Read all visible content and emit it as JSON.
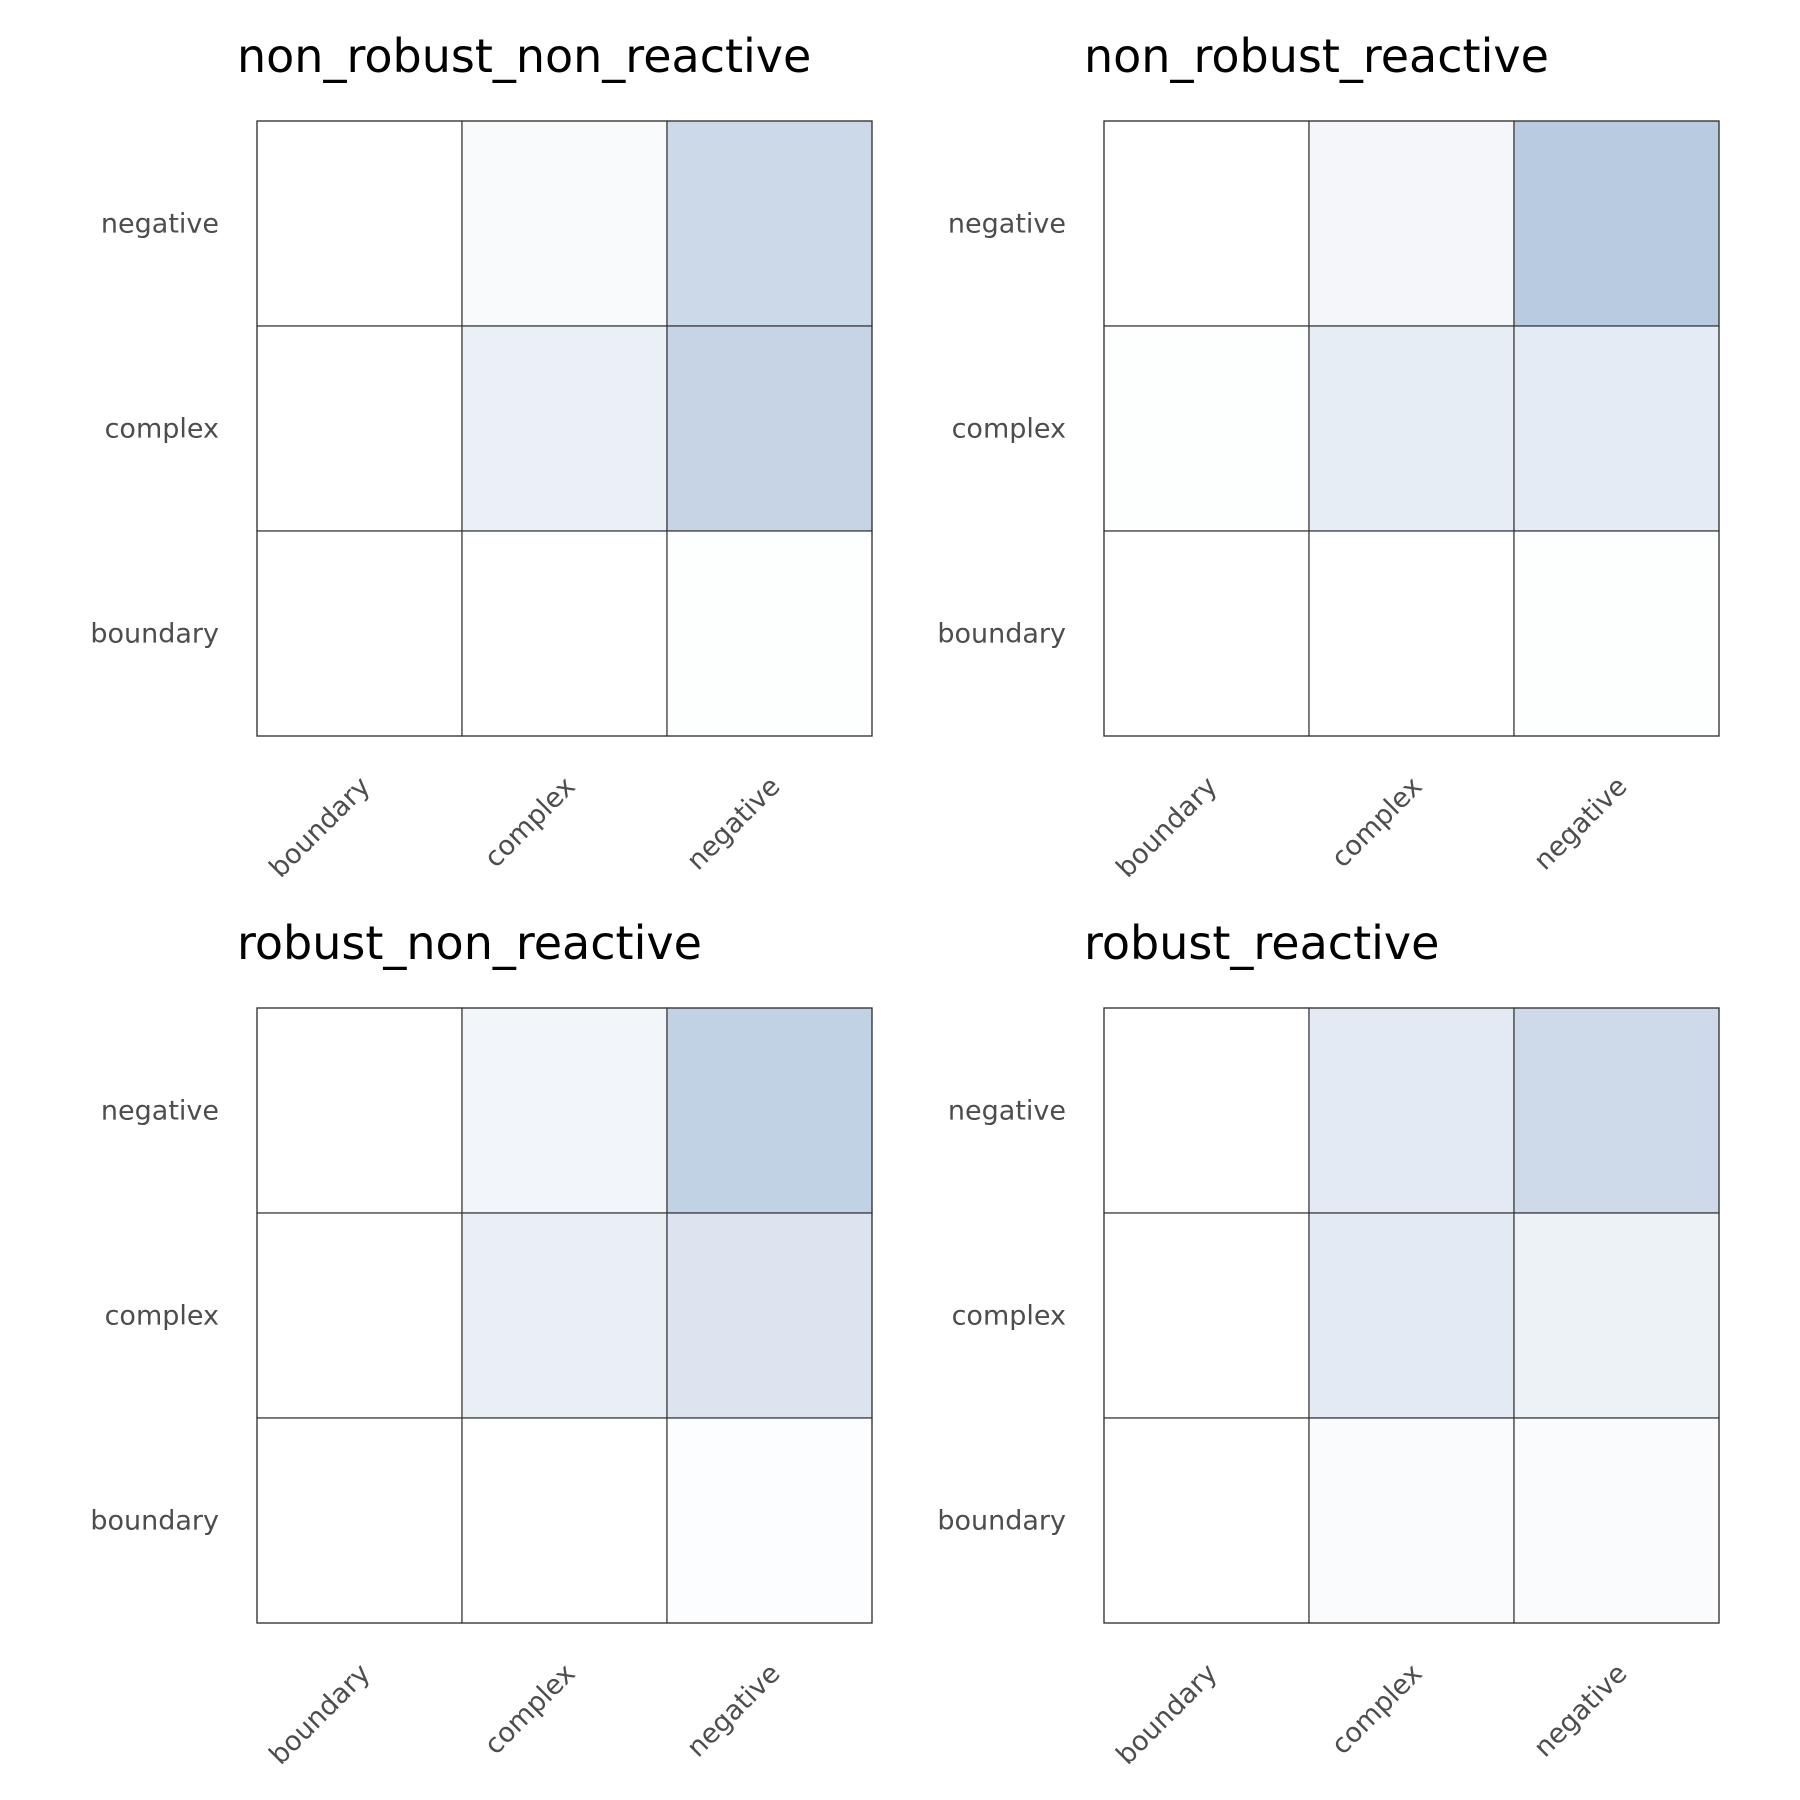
{
  "chart_data": [
    {
      "type": "heatmap",
      "title": "non_robust_non_reactive",
      "x_categories": [
        "boundary",
        "complex",
        "negative"
      ],
      "y_categories": [
        "negative",
        "complex",
        "boundary"
      ],
      "values": [
        [
          0.0,
          0.04,
          0.31
        ],
        [
          0.0,
          0.12,
          0.35
        ],
        [
          0.0,
          0.0,
          0.01
        ]
      ],
      "color_range": [
        "#ffffff",
        "#5b85b8"
      ],
      "value_range": [
        0,
        1
      ]
    },
    {
      "type": "heatmap",
      "title": "non_robust_reactive",
      "x_categories": [
        "boundary",
        "complex",
        "negative"
      ],
      "y_categories": [
        "negative",
        "complex",
        "boundary"
      ],
      "values": [
        [
          0.0,
          0.07,
          0.43
        ],
        [
          0.01,
          0.15,
          0.16
        ],
        [
          0.0,
          0.0,
          0.01
        ]
      ],
      "color_range": [
        "#ffffff",
        "#5b85b8"
      ],
      "value_range": [
        0,
        1
      ]
    },
    {
      "type": "heatmap",
      "title": "robust_non_reactive",
      "x_categories": [
        "boundary",
        "complex",
        "negative"
      ],
      "y_categories": [
        "negative",
        "complex",
        "boundary"
      ],
      "values": [
        [
          0.0,
          0.08,
          0.37
        ],
        [
          0.0,
          0.13,
          0.22
        ],
        [
          0.0,
          0.0,
          0.02
        ]
      ],
      "color_range": [
        "#ffffff",
        "#5b85b8"
      ],
      "value_range": [
        0,
        1
      ]
    },
    {
      "type": "heatmap",
      "title": "robust_reactive",
      "x_categories": [
        "boundary",
        "complex",
        "negative"
      ],
      "y_categories": [
        "negative",
        "complex",
        "boundary"
      ],
      "values": [
        [
          0.0,
          0.17,
          0.3
        ],
        [
          0.0,
          0.17,
          0.11
        ],
        [
          0.0,
          0.03,
          0.03
        ]
      ],
      "color_range": [
        "#ffffff",
        "#5b85b8"
      ],
      "value_range": [
        0,
        1
      ]
    }
  ]
}
